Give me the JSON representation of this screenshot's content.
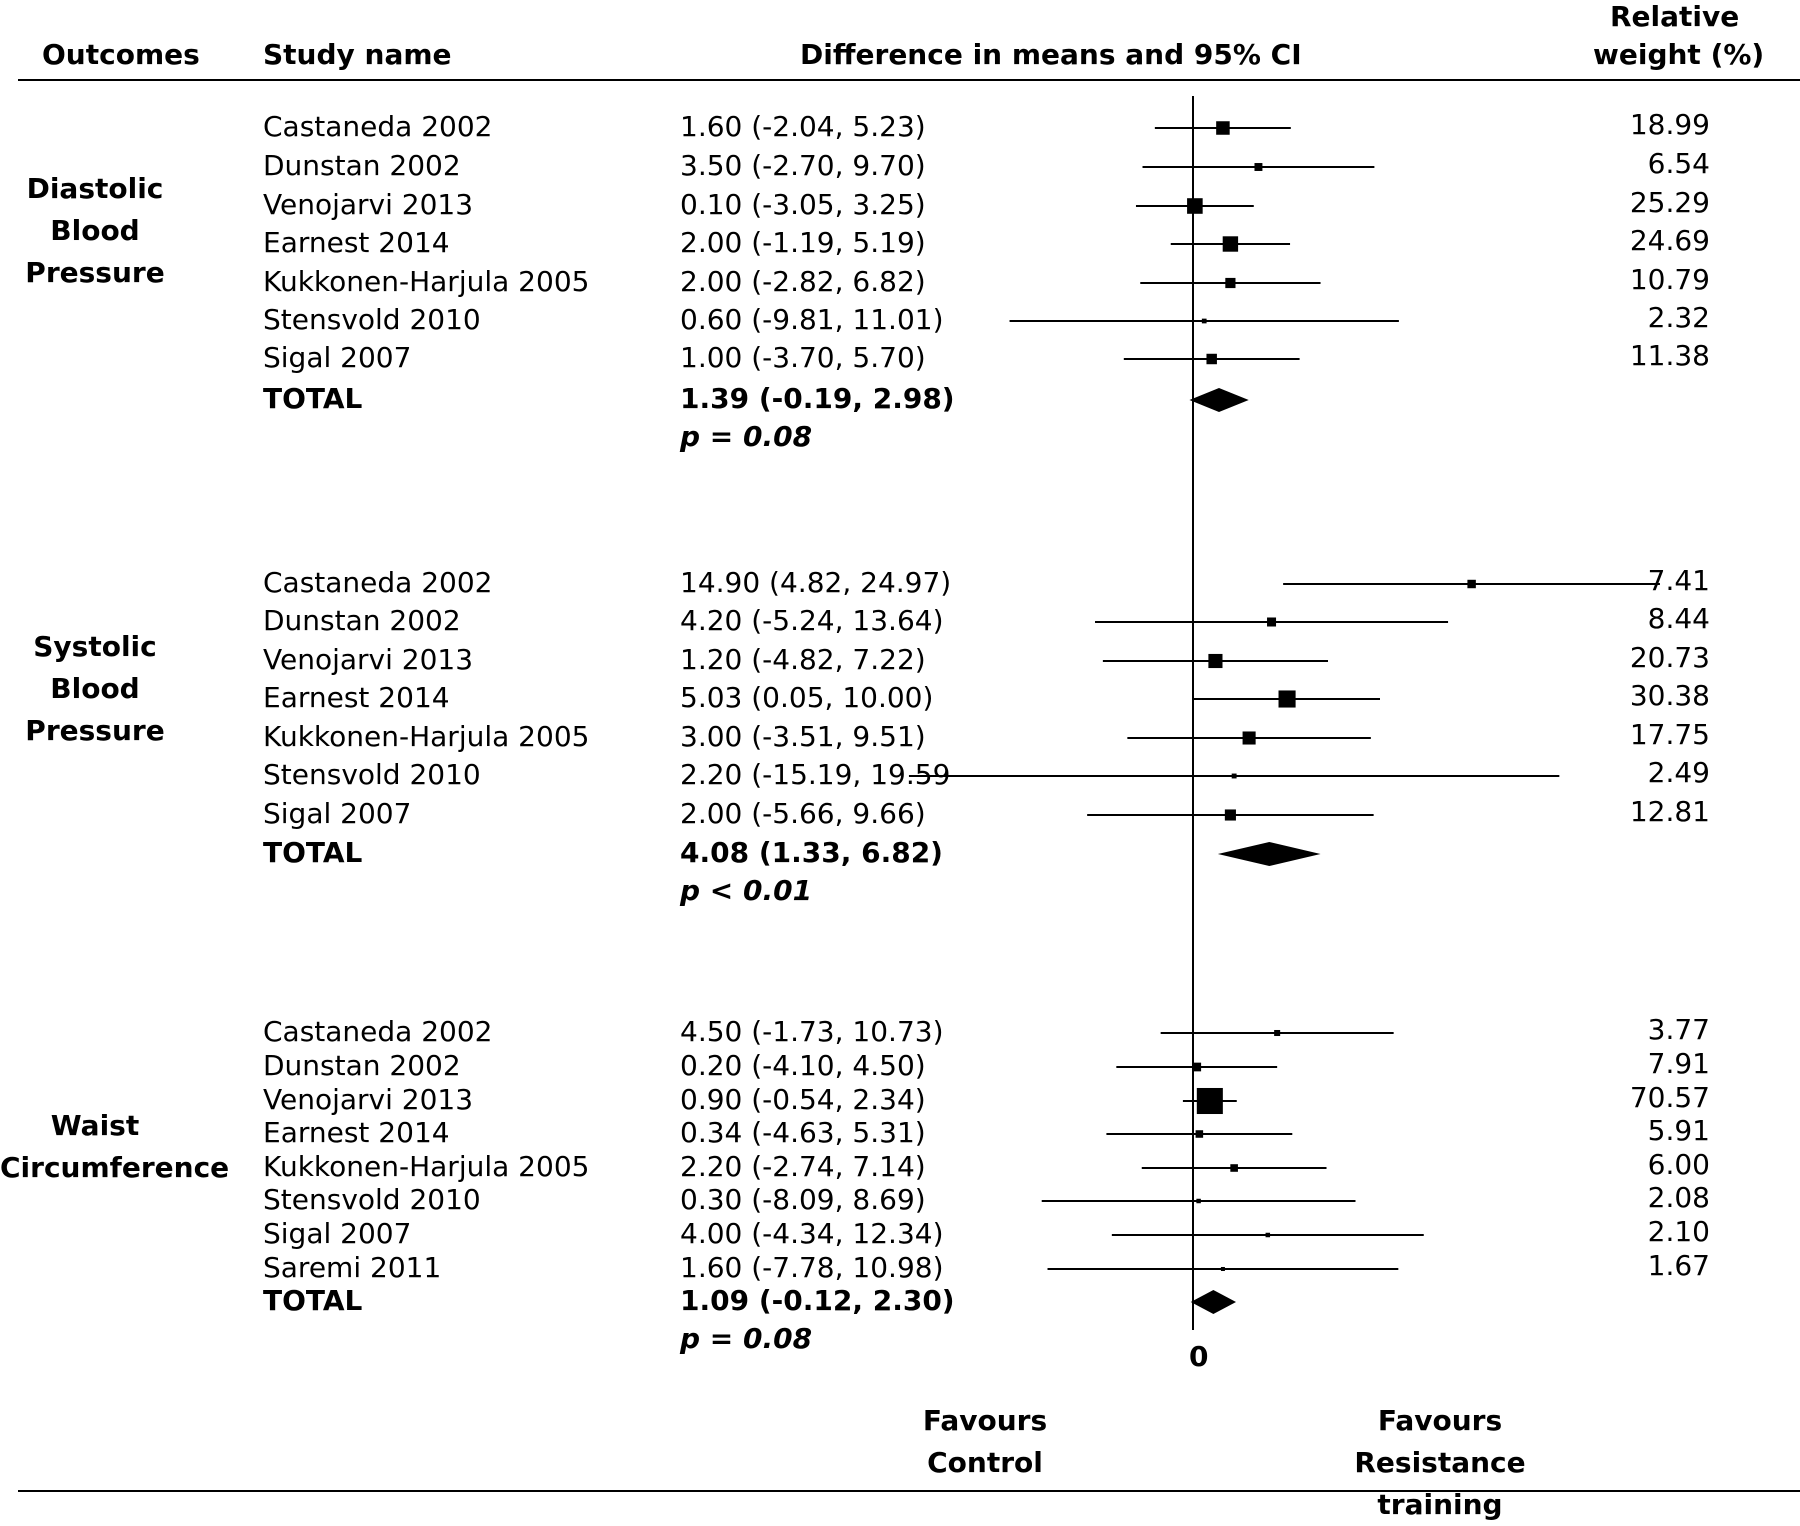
{
  "headers": {
    "outcomes": "Outcomes",
    "study_name": "Study name",
    "effect": "Difference in means and 95% CI",
    "weight_line1": "Relative",
    "weight_line2": "weight (%)"
  },
  "zero_label": "0",
  "favours_left": {
    "line1": "Favours",
    "line2": "Control"
  },
  "favours_right": {
    "line1": "Favours",
    "line2": "Resistance training"
  },
  "chart_data": {
    "type": "forest",
    "title": "",
    "xlabel": "",
    "reference_line": 0,
    "groups": [
      {
        "outcome_lines": [
          "Diastolic",
          "Blood",
          "Pressure"
        ],
        "studies": [
          {
            "name": "Castaneda 2002",
            "label": "1.60 (-2.04, 5.23)",
            "est": 1.6,
            "lo": -2.04,
            "hi": 5.23,
            "weight": "18.99"
          },
          {
            "name": "Dunstan 2002",
            "label": "3.50 (-2.70, 9.70)",
            "est": 3.5,
            "lo": -2.7,
            "hi": 9.7,
            "weight": "6.54"
          },
          {
            "name": "Venojarvi 2013",
            "label": "0.10 (-3.05, 3.25)",
            "est": 0.1,
            "lo": -3.05,
            "hi": 3.25,
            "weight": "25.29"
          },
          {
            "name": "Earnest 2014",
            "label": "2.00 (-1.19, 5.19)",
            "est": 2.0,
            "lo": -1.19,
            "hi": 5.19,
            "weight": "24.69"
          },
          {
            "name": "Kukkonen-Harjula 2005",
            "label": "2.00 (-2.82, 6.82)",
            "est": 2.0,
            "lo": -2.82,
            "hi": 6.82,
            "weight": "10.79"
          },
          {
            "name": "Stensvold 2010",
            "label": "0.60 (-9.81, 11.01)",
            "est": 0.6,
            "lo": -9.81,
            "hi": 11.01,
            "weight": "2.32"
          },
          {
            "name": "Sigal 2007",
            "label": "1.00 (-3.70, 5.70)",
            "est": 1.0,
            "lo": -3.7,
            "hi": 5.7,
            "weight": "11.38"
          }
        ],
        "total": {
          "name": "TOTAL",
          "label": "1.39 (-0.19, 2.98)",
          "est": 1.39,
          "lo": -0.19,
          "hi": 2.98,
          "p": "p = 0.08"
        }
      },
      {
        "outcome_lines": [
          "Systolic",
          "Blood",
          "Pressure"
        ],
        "studies": [
          {
            "name": "Castaneda 2002",
            "label": "14.90 (4.82, 24.97)",
            "est": 14.9,
            "lo": 4.82,
            "hi": 24.97,
            "weight": "7.41"
          },
          {
            "name": "Dunstan 2002",
            "label": "4.20 (-5.24, 13.64)",
            "est": 4.2,
            "lo": -5.24,
            "hi": 13.64,
            "weight": "8.44"
          },
          {
            "name": "Venojarvi 2013",
            "label": "1.20 (-4.82, 7.22)",
            "est": 1.2,
            "lo": -4.82,
            "hi": 7.22,
            "weight": "20.73"
          },
          {
            "name": "Earnest 2014",
            "label": "5.03 (0.05, 10.00)",
            "est": 5.03,
            "lo": 0.05,
            "hi": 10.0,
            "weight": "30.38"
          },
          {
            "name": "Kukkonen-Harjula 2005",
            "label": "3.00 (-3.51, 9.51)",
            "est": 3.0,
            "lo": -3.51,
            "hi": 9.51,
            "weight": "17.75"
          },
          {
            "name": "Stensvold 2010",
            "label": "2.20 (-15.19, 19.59",
            "est": 2.2,
            "lo": -15.19,
            "hi": 19.59,
            "weight": "2.49"
          },
          {
            "name": "Sigal 2007",
            "label": "2.00 (-5.66, 9.66)",
            "est": 2.0,
            "lo": -5.66,
            "hi": 9.66,
            "weight": "12.81"
          }
        ],
        "total": {
          "name": "TOTAL",
          "label": "4.08 (1.33, 6.82)",
          "est": 4.08,
          "lo": 1.33,
          "hi": 6.82,
          "p": "p < 0.01"
        }
      },
      {
        "outcome_lines": [
          "Waist",
          "Circumference"
        ],
        "studies": [
          {
            "name": "Castaneda 2002",
            "label": "4.50 (-1.73, 10.73)",
            "est": 4.5,
            "lo": -1.73,
            "hi": 10.73,
            "weight": "3.77"
          },
          {
            "name": "Dunstan 2002",
            "label": "0.20 (-4.10, 4.50)",
            "est": 0.2,
            "lo": -4.1,
            "hi": 4.5,
            "weight": "7.91"
          },
          {
            "name": "Venojarvi 2013",
            "label": "0.90 (-0.54, 2.34)",
            "est": 0.9,
            "lo": -0.54,
            "hi": 2.34,
            "weight": "70.57"
          },
          {
            "name": "Earnest 2014",
            "label": "0.34 (-4.63, 5.31)",
            "est": 0.34,
            "lo": -4.63,
            "hi": 5.31,
            "weight": "5.91"
          },
          {
            "name": "Kukkonen-Harjula 2005",
            "label": "2.20 (-2.74, 7.14)",
            "est": 2.2,
            "lo": -2.74,
            "hi": 7.14,
            "weight": "6.00"
          },
          {
            "name": "Stensvold 2010",
            "label": "0.30 (-8.09, 8.69)",
            "est": 0.3,
            "lo": -8.09,
            "hi": 8.69,
            "weight": "2.08"
          },
          {
            "name": "Sigal 2007",
            "label": "4.00 (-4.34, 12.34)",
            "est": 4.0,
            "lo": -4.34,
            "hi": 12.34,
            "weight": "2.10"
          },
          {
            "name": "Saremi 2011",
            "label": "1.60 (-7.78, 10.98)",
            "est": 1.6,
            "lo": -7.78,
            "hi": 10.98,
            "weight": "1.67"
          }
        ],
        "total": {
          "name": "TOTAL",
          "label": "1.09 (-0.12, 2.30)",
          "est": 1.09,
          "lo": -0.12,
          "hi": 2.3,
          "p": "p = 0.08"
        }
      }
    ]
  }
}
